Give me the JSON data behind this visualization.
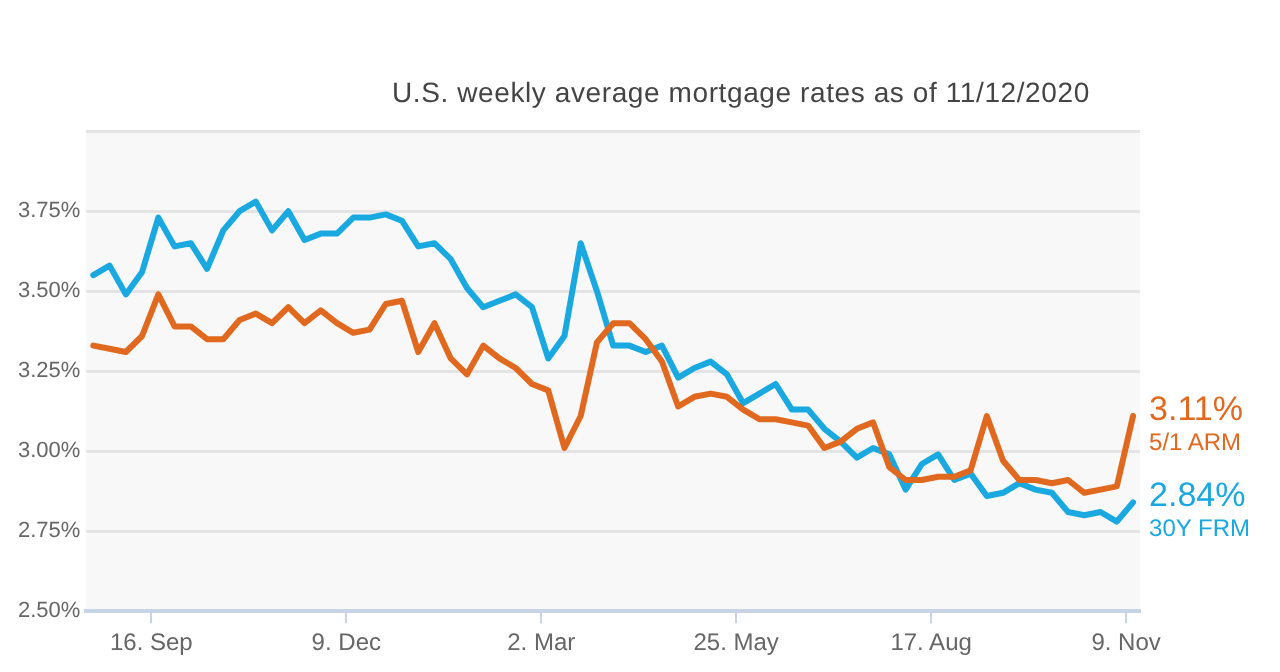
{
  "chart_data": {
    "type": "line",
    "subtitle": "U.S. weekly average mortgage rates as of 11/12/2020",
    "x": [
      "2019-08-22",
      "2019-08-29",
      "2019-09-05",
      "2019-09-12",
      "2019-09-19",
      "2019-09-26",
      "2019-10-03",
      "2019-10-10",
      "2019-10-17",
      "2019-10-24",
      "2019-10-31",
      "2019-11-07",
      "2019-11-14",
      "2019-11-21",
      "2019-11-28",
      "2019-12-05",
      "2019-12-12",
      "2019-12-19",
      "2019-12-26",
      "2020-01-02",
      "2020-01-09",
      "2020-01-16",
      "2020-01-23",
      "2020-01-30",
      "2020-02-06",
      "2020-02-13",
      "2020-02-20",
      "2020-02-27",
      "2020-03-05",
      "2020-03-12",
      "2020-03-19",
      "2020-03-26",
      "2020-04-02",
      "2020-04-09",
      "2020-04-16",
      "2020-04-23",
      "2020-04-30",
      "2020-05-07",
      "2020-05-14",
      "2020-05-21",
      "2020-05-28",
      "2020-06-04",
      "2020-06-11",
      "2020-06-18",
      "2020-06-25",
      "2020-07-02",
      "2020-07-09",
      "2020-07-16",
      "2020-07-23",
      "2020-07-30",
      "2020-08-06",
      "2020-08-13",
      "2020-08-20",
      "2020-08-27",
      "2020-09-03",
      "2020-09-10",
      "2020-09-17",
      "2020-09-24",
      "2020-10-01",
      "2020-10-08",
      "2020-10-15",
      "2020-10-22",
      "2020-10-29",
      "2020-11-05",
      "2020-11-12"
    ],
    "series": [
      {
        "name": "5/1 ARM",
        "color": "#e0691f",
        "values": [
          3.33,
          3.32,
          3.31,
          3.36,
          3.49,
          3.39,
          3.39,
          3.35,
          3.35,
          3.41,
          3.43,
          3.4,
          3.45,
          3.4,
          3.44,
          3.4,
          3.37,
          3.38,
          3.46,
          3.47,
          3.31,
          3.4,
          3.29,
          3.24,
          3.33,
          3.29,
          3.26,
          3.21,
          3.19,
          3.01,
          3.11,
          3.34,
          3.4,
          3.4,
          3.35,
          3.28,
          3.14,
          3.17,
          3.18,
          3.17,
          3.13,
          3.1,
          3.1,
          3.09,
          3.08,
          3.01,
          3.03,
          3.07,
          3.09,
          2.95,
          2.91,
          2.91,
          2.92,
          2.92,
          2.94,
          3.11,
          2.97,
          2.91,
          2.91,
          2.9,
          2.91,
          2.87,
          2.88,
          2.89,
          3.11
        ],
        "value_labels": [
          null,
          null,
          null,
          null,
          null,
          null,
          null,
          null,
          null,
          null,
          null,
          null,
          null,
          null,
          null,
          null,
          null,
          null,
          null,
          null,
          null,
          null,
          null,
          null,
          null,
          null,
          null,
          null,
          null,
          null,
          null,
          null,
          null,
          null,
          null,
          null,
          null,
          null,
          null,
          null,
          null,
          null,
          null,
          null,
          null,
          null,
          null,
          null,
          null,
          null,
          null,
          null,
          null,
          null,
          null,
          null,
          null,
          null,
          null,
          null,
          null,
          null,
          null,
          null,
          "3.11%"
        ]
      },
      {
        "name": "30Y FRM",
        "color": "#1aa8e0",
        "values": [
          3.55,
          3.58,
          3.49,
          3.56,
          3.73,
          3.64,
          3.65,
          3.57,
          3.69,
          3.75,
          3.78,
          3.69,
          3.75,
          3.66,
          3.68,
          3.68,
          3.73,
          3.73,
          3.74,
          3.72,
          3.64,
          3.65,
          3.6,
          3.51,
          3.45,
          3.47,
          3.49,
          3.45,
          3.29,
          3.36,
          3.65,
          3.5,
          3.33,
          3.33,
          3.31,
          3.33,
          3.23,
          3.26,
          3.28,
          3.24,
          3.15,
          3.18,
          3.21,
          3.13,
          3.13,
          3.07,
          3.03,
          2.98,
          3.01,
          2.99,
          2.88,
          2.96,
          2.99,
          2.91,
          2.93,
          2.86,
          2.87,
          2.9,
          2.88,
          2.87,
          2.81,
          2.8,
          2.81,
          2.78,
          2.84
        ],
        "value_labels": [
          null,
          null,
          null,
          null,
          null,
          null,
          null,
          null,
          null,
          null,
          null,
          null,
          null,
          null,
          null,
          null,
          null,
          null,
          null,
          null,
          null,
          null,
          null,
          null,
          null,
          null,
          null,
          null,
          null,
          null,
          null,
          null,
          null,
          null,
          null,
          null,
          null,
          null,
          null,
          null,
          null,
          null,
          null,
          null,
          null,
          null,
          null,
          null,
          null,
          null,
          null,
          null,
          null,
          null,
          null,
          null,
          null,
          null,
          null,
          null,
          null,
          null,
          null,
          null,
          "2.84%"
        ]
      }
    ],
    "xlim": [
      "2019-08-19",
      "2020-11-15"
    ],
    "xticks": [
      {
        "value": "2019-09-16",
        "label": "16. Sep"
      },
      {
        "value": "2019-12-09",
        "label": "9. Dec"
      },
      {
        "value": "2020-03-02",
        "label": "2. Mar"
      },
      {
        "value": "2020-05-25",
        "label": "25. May"
      },
      {
        "value": "2020-08-17",
        "label": "17. Aug"
      },
      {
        "value": "2020-11-09",
        "label": "9. Nov"
      }
    ],
    "ylim": [
      2.5,
      4.0
    ],
    "yticks": [
      {
        "value": 2.5,
        "label": "2.50%"
      },
      {
        "value": 2.75,
        "label": "2.75%"
      },
      {
        "value": 3.0,
        "label": "3.00%"
      },
      {
        "value": 3.25,
        "label": "3.25%"
      },
      {
        "value": 3.5,
        "label": "3.50%"
      },
      {
        "value": 3.75,
        "label": "3.75%"
      },
      {
        "value": 4.0,
        "label": null
      }
    ],
    "grid": "y",
    "legend": false,
    "marker": "none",
    "line_style": "solid"
  }
}
